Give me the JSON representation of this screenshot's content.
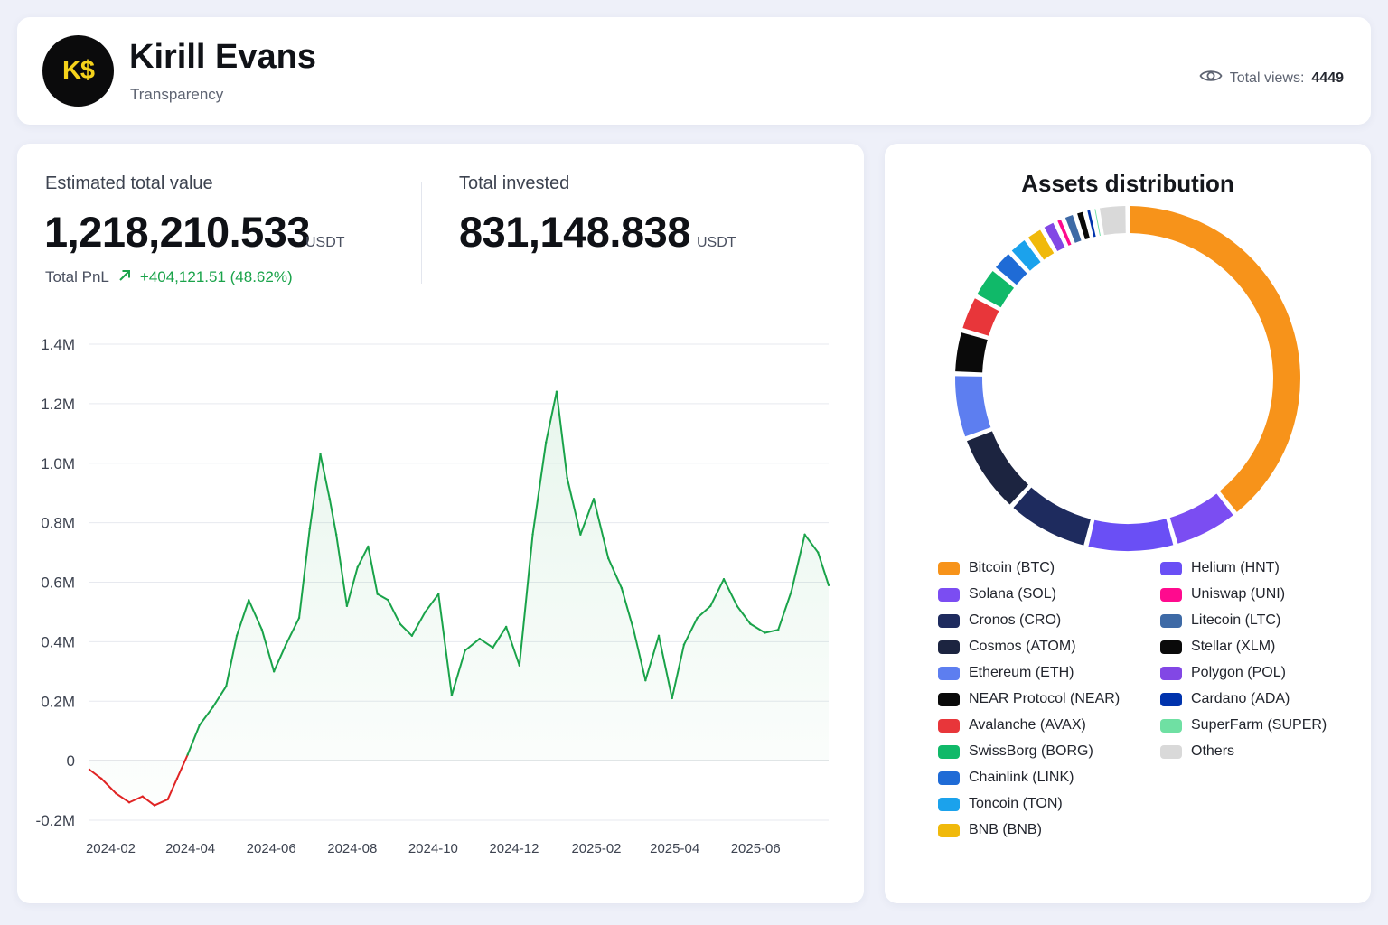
{
  "header": {
    "logo_text": "K$",
    "name": "Kirill Evans",
    "subtitle": "Transparency",
    "views_label": "Total views:",
    "views_count": "4449"
  },
  "summary": {
    "estimated_label": "Estimated total value",
    "estimated_value": "1,218,210.533",
    "estimated_unit": "USDT",
    "pnl_label": "Total PnL",
    "pnl_value": "+404,121.51 (48.62%)",
    "invested_label": "Total invested",
    "invested_value": "831,148.838",
    "invested_unit": "USDT"
  },
  "colors": {
    "positive": "#1aa34a",
    "negative": "#e02424",
    "brand_yellow": "#f5d21b"
  },
  "chart_data": [
    {
      "type": "line",
      "title": "",
      "xlabel": "",
      "ylabel": "",
      "y_ticks": [
        "1.4M",
        "1.2M",
        "1.0M",
        "0.8M",
        "0.6M",
        "0.4M",
        "0.2M",
        "0",
        "-0.2M"
      ],
      "x_ticks": [
        "2024-02",
        "2024-04",
        "2024-06",
        "2024-08",
        "2024-10",
        "2024-12",
        "2025-02",
        "2025-04",
        "2025-06"
      ],
      "ylim": [
        -200000,
        1400000
      ],
      "grid": true,
      "series": [
        {
          "x": [
            "2024-01-16",
            "2024-01-25",
            "2024-02-05",
            "2024-02-15",
            "2024-02-25",
            "2024-03-05",
            "2024-03-15",
            "2024-03-22",
            "2024-03-30",
            "2024-04-08",
            "2024-04-18",
            "2024-04-28",
            "2024-05-06",
            "2024-05-15",
            "2024-05-25",
            "2024-06-03",
            "2024-06-12",
            "2024-06-22",
            "2024-06-30",
            "2024-07-08",
            "2024-07-15",
            "2024-07-20",
            "2024-07-28",
            "2024-08-05",
            "2024-08-13",
            "2024-08-20",
            "2024-08-28",
            "2024-09-06",
            "2024-09-15",
            "2024-09-25",
            "2024-10-05",
            "2024-10-15",
            "2024-10-25",
            "2024-11-05",
            "2024-11-15",
            "2024-11-25",
            "2024-12-05",
            "2024-12-15",
            "2024-12-25",
            "2025-01-02",
            "2025-01-10",
            "2025-01-20",
            "2025-01-30",
            "2025-02-10",
            "2025-02-20",
            "2025-03-01",
            "2025-03-10",
            "2025-03-20",
            "2025-03-30",
            "2025-04-08",
            "2025-04-18",
            "2025-04-28",
            "2025-05-08",
            "2025-05-18",
            "2025-05-28",
            "2025-06-08",
            "2025-06-18",
            "2025-06-28",
            "2025-07-08",
            "2025-07-18",
            "2025-07-26"
          ],
          "values": [
            -30000,
            -60000,
            -110000,
            -140000,
            -120000,
            -150000,
            -130000,
            -60000,
            20000,
            120000,
            180000,
            250000,
            420000,
            540000,
            440000,
            300000,
            390000,
            480000,
            780000,
            1030000,
            880000,
            760000,
            520000,
            650000,
            720000,
            560000,
            540000,
            460000,
            420000,
            500000,
            560000,
            220000,
            370000,
            410000,
            380000,
            450000,
            320000,
            760000,
            1070000,
            1240000,
            950000,
            760000,
            880000,
            680000,
            580000,
            440000,
            270000,
            420000,
            210000,
            390000,
            480000,
            520000,
            610000,
            520000,
            460000,
            430000,
            440000,
            570000,
            760000,
            700000,
            590000
          ]
        }
      ]
    },
    {
      "type": "pie",
      "title": "Assets distribution",
      "series": [
        {
          "name": "Bitcoin (BTC)",
          "color": "#f7931a",
          "value": 40.5
        },
        {
          "name": "Solana (SOL)",
          "color": "#7b4df2",
          "value": 6.4
        },
        {
          "name": "Helium (HNT)",
          "color": "#6a4ff5",
          "value": 8.6
        },
        {
          "name": "Cronos (CRO)",
          "color": "#1e2b5e",
          "value": 8.1
        },
        {
          "name": "Cosmos (ATOM)",
          "color": "#1c2440",
          "value": 7.8
        },
        {
          "name": "Ethereum (ETH)",
          "color": "#5d7ef0",
          "value": 6.3
        },
        {
          "name": "NEAR Protocol (NEAR)",
          "color": "#0a0a0a",
          "value": 4.2
        },
        {
          "name": "Avalanche (AVAX)",
          "color": "#e8363a",
          "value": 3.5
        },
        {
          "name": "SwissBorg (BORG)",
          "color": "#10b969",
          "value": 3.1
        },
        {
          "name": "Chainlink (LINK)",
          "color": "#1f6bd6",
          "value": 2.2
        },
        {
          "name": "Toncoin (TON)",
          "color": "#1ba2ec",
          "value": 2.0
        },
        {
          "name": "BNB (BNB)",
          "color": "#f0b90b",
          "value": 1.8
        },
        {
          "name": "Polygon (POL)",
          "color": "#8247e5",
          "value": 1.4
        },
        {
          "name": "Uniswap (UNI)",
          "color": "#ff0a8e",
          "value": 0.8
        },
        {
          "name": "Litecoin (LTC)",
          "color": "#3e6aa6",
          "value": 1.2
        },
        {
          "name": "Stellar (XLM)",
          "color": "#0a0a0a",
          "value": 1.0
        },
        {
          "name": "Cardano (ADA)",
          "color": "#0033ad",
          "value": 0.7
        },
        {
          "name": "SuperFarm (SUPER)",
          "color": "#6fe0a3",
          "value": 0.5
        },
        {
          "name": "Others",
          "color": "#d9d9d9",
          "value": 2.9
        }
      ]
    }
  ],
  "legend": {
    "left": [
      {
        "label": "Bitcoin (BTC)",
        "color": "#f7931a"
      },
      {
        "label": "Solana (SOL)",
        "color": "#7b4df2"
      },
      {
        "label": "Cronos (CRO)",
        "color": "#1e2b5e"
      },
      {
        "label": "Cosmos (ATOM)",
        "color": "#1c2440"
      },
      {
        "label": "Ethereum (ETH)",
        "color": "#5d7ef0"
      },
      {
        "label": "NEAR Protocol (NEAR)",
        "color": "#0a0a0a"
      },
      {
        "label": "Avalanche (AVAX)",
        "color": "#e8363a"
      },
      {
        "label": "SwissBorg (BORG)",
        "color": "#10b969"
      },
      {
        "label": "Chainlink (LINK)",
        "color": "#1f6bd6"
      },
      {
        "label": "Toncoin (TON)",
        "color": "#1ba2ec"
      },
      {
        "label": "BNB (BNB)",
        "color": "#f0b90b"
      }
    ],
    "right": [
      {
        "label": "Helium (HNT)",
        "color": "#6a4ff5"
      },
      {
        "label": "Uniswap (UNI)",
        "color": "#ff0a8e"
      },
      {
        "label": "Litecoin (LTC)",
        "color": "#3e6aa6"
      },
      {
        "label": "Stellar (XLM)",
        "color": "#0a0a0a"
      },
      {
        "label": "Polygon (POL)",
        "color": "#8247e5"
      },
      {
        "label": "Cardano (ADA)",
        "color": "#0033ad"
      },
      {
        "label": "SuperFarm (SUPER)",
        "color": "#6fe0a3"
      },
      {
        "label": "Others",
        "color": "#d9d9d9"
      }
    ]
  }
}
